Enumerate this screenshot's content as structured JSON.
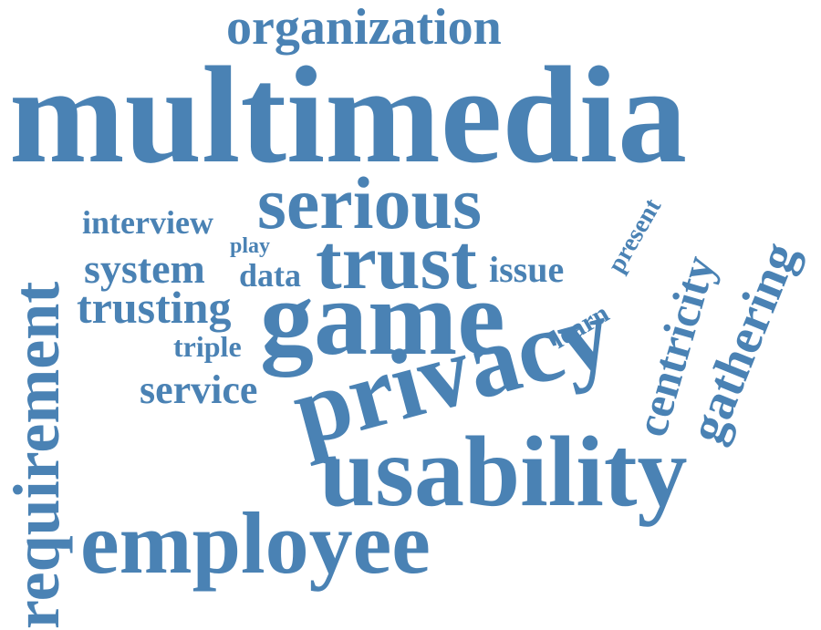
{
  "word_color": "#4a82b4",
  "background": "#ffffff",
  "words": {
    "organization": "organization",
    "multimedia": "multimedia",
    "serious": "serious",
    "interview": "interview",
    "play": "play",
    "system": "system",
    "data": "data",
    "trust": "trust",
    "issue": "issue",
    "present": "present",
    "centricity": "centricity",
    "gathering": "gathering",
    "trusting": "trusting",
    "game": "game",
    "learn": "learn",
    "triple": "triple",
    "privacy": "privacy",
    "service": "service",
    "usability": "usability",
    "employee": "employee",
    "requirement": "requirement"
  }
}
